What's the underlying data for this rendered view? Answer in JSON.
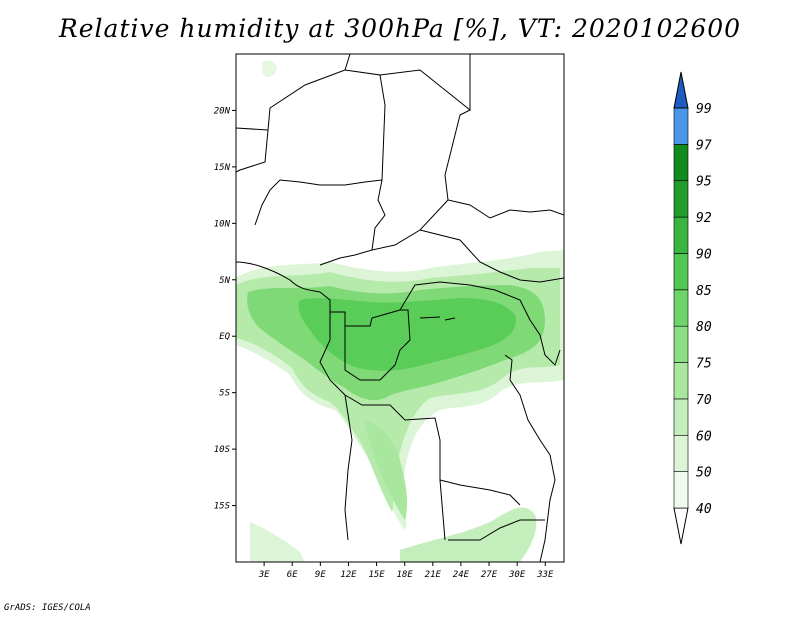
{
  "title": "Relative humidity at 300hPa [%], VT: 2020102600",
  "credit": "GrADS: IGES/COLA",
  "map": {
    "lat_range": [
      -20,
      25
    ],
    "lon_range": [
      0,
      35
    ],
    "lat_ticks": [
      {
        "value": 20,
        "label": "20N"
      },
      {
        "value": 15,
        "label": "15N"
      },
      {
        "value": 10,
        "label": "10N"
      },
      {
        "value": 5,
        "label": "5N"
      },
      {
        "value": 0,
        "label": "EQ"
      },
      {
        "value": -5,
        "label": "5S"
      },
      {
        "value": -10,
        "label": "10S"
      },
      {
        "value": -15,
        "label": "15S"
      }
    ],
    "lon_ticks": [
      {
        "value": 3,
        "label": "3E"
      },
      {
        "value": 6,
        "label": "6E"
      },
      {
        "value": 9,
        "label": "9E"
      },
      {
        "value": 12,
        "label": "12E"
      },
      {
        "value": 15,
        "label": "15E"
      },
      {
        "value": 18,
        "label": "18E"
      },
      {
        "value": 21,
        "label": "21E"
      },
      {
        "value": 24,
        "label": "24E"
      },
      {
        "value": 27,
        "label": "27E"
      },
      {
        "value": 30,
        "label": "30E"
      },
      {
        "value": 33,
        "label": "33E"
      }
    ]
  },
  "colorbar": {
    "levels": [
      {
        "label": "40",
        "color": "#f0fbee"
      },
      {
        "label": "50",
        "color": "#dcf5d6"
      },
      {
        "label": "60",
        "color": "#c4eebc"
      },
      {
        "label": "70",
        "color": "#a9e79f"
      },
      {
        "label": "75",
        "color": "#8ddf84"
      },
      {
        "label": "80",
        "color": "#6fd46a"
      },
      {
        "label": "85",
        "color": "#52c854"
      },
      {
        "label": "90",
        "color": "#3ab53f"
      },
      {
        "label": "92",
        "color": "#239c2b"
      },
      {
        "label": "95",
        "color": "#128a1d"
      },
      {
        "label": "97",
        "color": "#4a97e8"
      },
      {
        "label": "99",
        "color": "#2a74d6"
      }
    ],
    "bottom_color": "#ffffff",
    "top_color": "#1a5cc0"
  }
}
